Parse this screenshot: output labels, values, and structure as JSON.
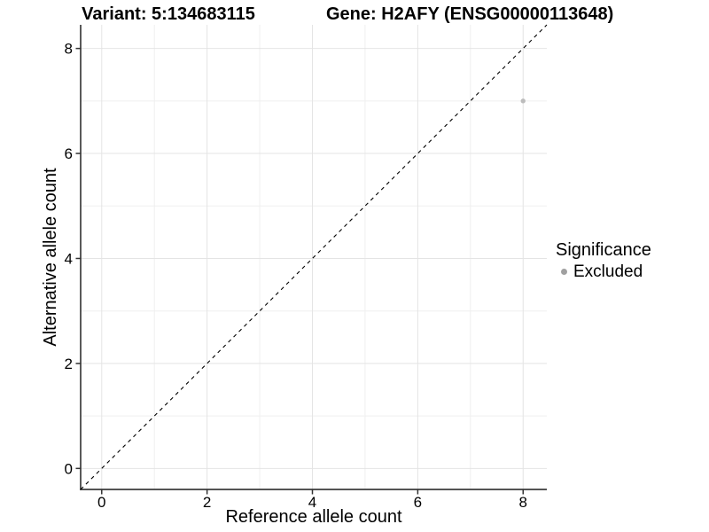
{
  "header": {
    "title_left": "Variant: 5:134683115",
    "title_right": "Gene: H2AFY (ENSG00000113648)"
  },
  "legend": {
    "title": "Significance",
    "items": [
      {
        "label": "Excluded",
        "color": "#a0a0a0"
      }
    ]
  },
  "chart_data": {
    "type": "scatter",
    "title_left": "Variant: 5:134683115",
    "title_right": "Gene: H2AFY (ENSG00000113648)",
    "xlabel": "Reference allele count",
    "ylabel": "Alternative allele count",
    "xlim": [
      -0.4,
      8.45
    ],
    "ylim": [
      -0.4,
      8.45
    ],
    "xticks": [
      0,
      2,
      4,
      6,
      8
    ],
    "yticks": [
      0,
      2,
      4,
      6,
      8
    ],
    "minor_x": [
      1,
      3,
      5,
      7
    ],
    "minor_y": [
      1,
      3,
      5,
      7
    ],
    "grid": "on",
    "legend_position": "right",
    "series": [
      {
        "name": "Excluded",
        "points": [
          {
            "x": 8,
            "y": 7
          }
        ],
        "color": "#bcbcbc"
      }
    ],
    "reference_line": {
      "kind": "identity",
      "equation": "y = x",
      "style": "dashed",
      "color": "#000000"
    }
  },
  "colors": {
    "background": "#ffffff",
    "grid_major": "#e4e4e4",
    "grid_minor": "#efefef",
    "axis_line": "#3c3c3c",
    "tick_mark": "#333333",
    "text": "#000000"
  }
}
